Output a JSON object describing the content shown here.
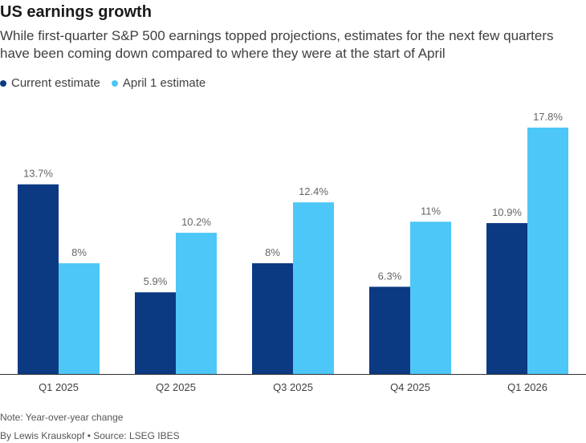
{
  "title": "US earnings growth",
  "subtitle": "While first-quarter S&P 500 earnings topped projections, estimates for the next few quarters have been coming down compared to where they were at the start of April",
  "note": "Note: Year-over-year change",
  "byline": "By Lewis Krauskopf • Source: LSEG IBES",
  "colors": {
    "current": "#0b3a82",
    "april": "#4dc7f7",
    "label": "#666666",
    "axis": "#333333"
  },
  "chart_data": {
    "type": "bar",
    "categories": [
      "Q1 2025",
      "Q2 2025",
      "Q3 2025",
      "Q4 2025",
      "Q1 2026"
    ],
    "series": [
      {
        "name": "Current estimate",
        "values": [
          13.7,
          5.9,
          8,
          6.3,
          10.9
        ],
        "labels": [
          "13.7%",
          "5.9%",
          "8%",
          "6.3%",
          "10.9%"
        ]
      },
      {
        "name": "April 1 estimate",
        "values": [
          8,
          10.2,
          12.4,
          11,
          17.8
        ],
        "labels": [
          "8%",
          "10.2%",
          "12.4%",
          "11%",
          "17.8%"
        ]
      }
    ],
    "ylim": [
      0,
      17.8
    ],
    "grid": false,
    "legend": "top-left"
  }
}
